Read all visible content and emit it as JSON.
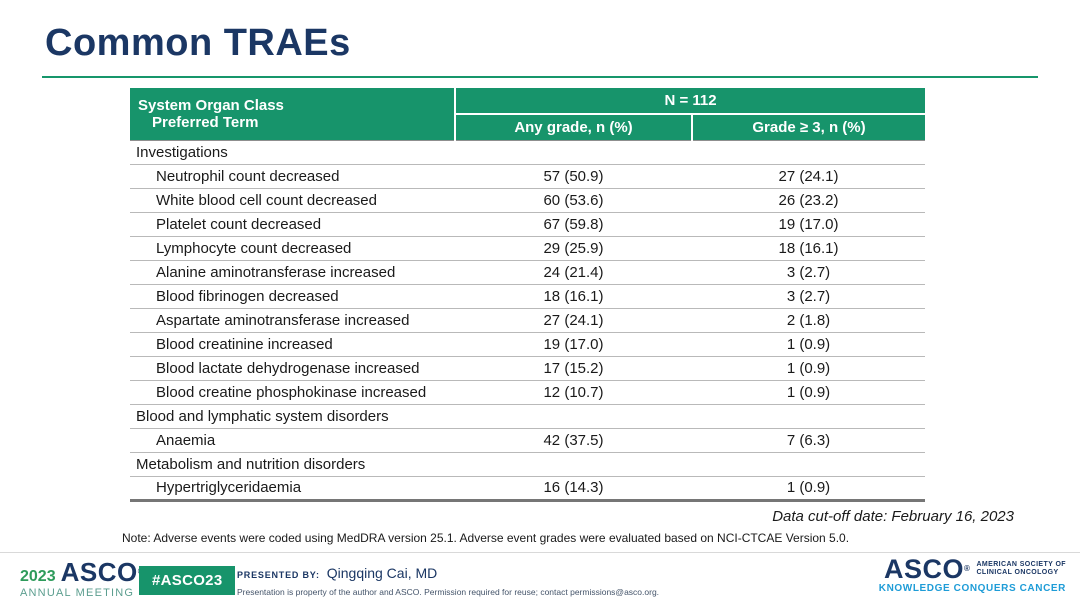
{
  "slide": {
    "title": "Common TRAEs",
    "accent_green": "#17946B",
    "navy": "#1B3764",
    "tagline_blue": "#1E9CD7"
  },
  "table": {
    "header": {
      "col1_line1": "System Organ Class",
      "col1_line2": "Preferred Term",
      "n_label": "N = 112",
      "any_grade_label": "Any grade, n (%)",
      "grade3_label": "Grade ≥ 3, n (%)"
    },
    "rows": [
      {
        "type": "category",
        "term": "Investigations",
        "any_grade": "",
        "grade3plus": ""
      },
      {
        "type": "term",
        "term": "Neutrophil count decreased",
        "any_grade": "57 (50.9)",
        "grade3plus": "27 (24.1)"
      },
      {
        "type": "term",
        "term": "White blood cell count decreased",
        "any_grade": "60 (53.6)",
        "grade3plus": "26 (23.2)"
      },
      {
        "type": "term",
        "term": "Platelet count decreased",
        "any_grade": "67 (59.8)",
        "grade3plus": "19 (17.0)"
      },
      {
        "type": "term",
        "term": "Lymphocyte count decreased",
        "any_grade": "29 (25.9)",
        "grade3plus": "18 (16.1)"
      },
      {
        "type": "term",
        "term": "Alanine aminotransferase increased",
        "any_grade": "24 (21.4)",
        "grade3plus": "3 (2.7)"
      },
      {
        "type": "term",
        "term": "Blood fibrinogen decreased",
        "any_grade": "18 (16.1)",
        "grade3plus": "3 (2.7)"
      },
      {
        "type": "term",
        "term": "Aspartate aminotransferase increased",
        "any_grade": "27 (24.1)",
        "grade3plus": "2 (1.8)"
      },
      {
        "type": "term",
        "term": "Blood creatinine increased",
        "any_grade": "19 (17.0)",
        "grade3plus": "1 (0.9)"
      },
      {
        "type": "term",
        "term": "Blood lactate dehydrogenase increased",
        "any_grade": "17 (15.2)",
        "grade3plus": "1 (0.9)"
      },
      {
        "type": "term",
        "term": "Blood creatine phosphokinase increased",
        "any_grade": "12 (10.7)",
        "grade3plus": "1 (0.9)"
      },
      {
        "type": "category",
        "term": "Blood and lymphatic system disorders",
        "any_grade": "",
        "grade3plus": ""
      },
      {
        "type": "term",
        "term": "Anaemia",
        "any_grade": "42 (37.5)",
        "grade3plus": "7 (6.3)"
      },
      {
        "type": "category",
        "term": "Metabolism and nutrition disorders",
        "any_grade": "",
        "grade3plus": ""
      },
      {
        "type": "term",
        "term": "Hypertriglyceridaemia",
        "any_grade": "16 (14.3)",
        "grade3plus": "1 (0.9)"
      }
    ]
  },
  "cutoff": "Data cut-off date: February 16, 2023",
  "note": "Note: Adverse events were coded using MedDRA version 25.1. Adverse event grades were evaluated based on NCI-CTCAE Version 5.0.",
  "footer": {
    "meeting_year": "2023",
    "meeting_asco": "ASCO",
    "meeting_name": "ANNUAL MEETING",
    "registered_mark": "®",
    "hashtag": "#ASCO23",
    "presented_by_label": "PRESENTED BY:",
    "presenter": "Qingqing Cai, MD",
    "disclaimer": "Presentation is property of the author and ASCO. Permission required for reuse; contact permissions@asco.org.",
    "asco_logo": "ASCO",
    "society_line1": "AMERICAN SOCIETY OF",
    "society_line2": "CLINICAL ONCOLOGY",
    "tagline": "KNOWLEDGE CONQUERS CANCER"
  },
  "chart_data": {
    "type": "table",
    "title": "Common TRAEs",
    "columns": [
      "System Organ Class / Preferred Term",
      "Any grade, n (%)",
      "Grade ≥ 3, n (%)"
    ],
    "n": 112,
    "rows": [
      [
        "Investigations",
        "",
        ""
      ],
      [
        "Neutrophil count decreased",
        "57 (50.9)",
        "27 (24.1)"
      ],
      [
        "White blood cell count decreased",
        "60 (53.6)",
        "26 (23.2)"
      ],
      [
        "Platelet count decreased",
        "67 (59.8)",
        "19 (17.0)"
      ],
      [
        "Lymphocyte count decreased",
        "29 (25.9)",
        "18 (16.1)"
      ],
      [
        "Alanine aminotransferase increased",
        "24 (21.4)",
        "3 (2.7)"
      ],
      [
        "Blood fibrinogen decreased",
        "18 (16.1)",
        "3 (2.7)"
      ],
      [
        "Aspartate aminotransferase increased",
        "27 (24.1)",
        "2 (1.8)"
      ],
      [
        "Blood creatinine increased",
        "19 (17.0)",
        "1 (0.9)"
      ],
      [
        "Blood lactate dehydrogenase increased",
        "17 (15.2)",
        "1 (0.9)"
      ],
      [
        "Blood creatine phosphokinase increased",
        "12 (10.7)",
        "1 (0.9)"
      ],
      [
        "Blood and lymphatic system disorders",
        "",
        ""
      ],
      [
        "Anaemia",
        "42 (37.5)",
        "7 (6.3)"
      ],
      [
        "Metabolism and nutrition disorders",
        "",
        ""
      ],
      [
        "Hypertriglyceridaemia",
        "16 (14.3)",
        "1 (0.9)"
      ]
    ]
  }
}
